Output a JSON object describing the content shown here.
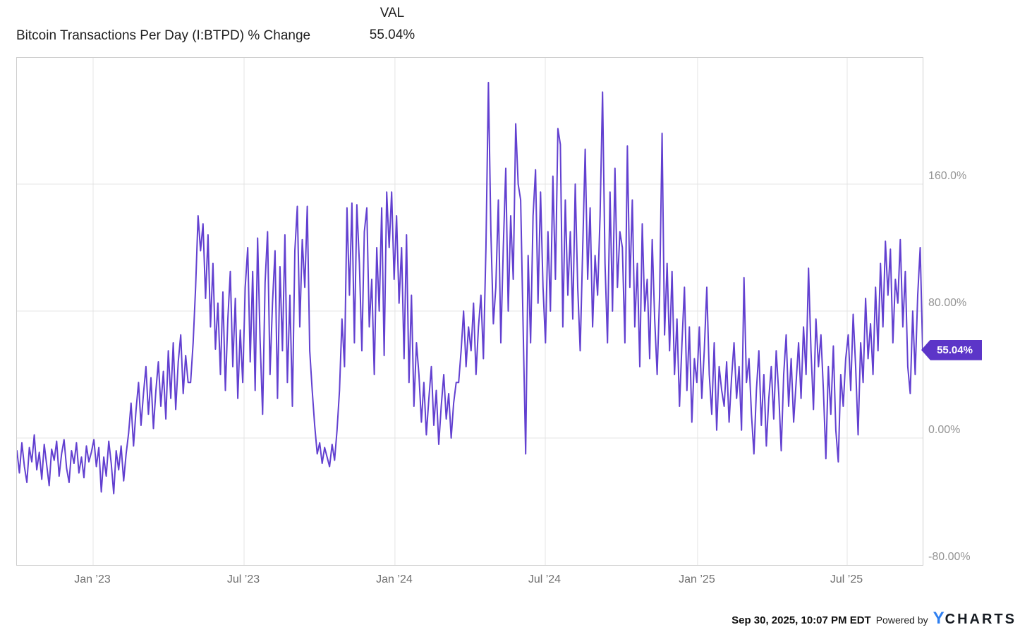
{
  "header": {
    "title": "Bitcoin Transactions Per Day (I:BTPD) % Change",
    "legend_label": "VAL",
    "legend_value": "55.04%"
  },
  "colors": {
    "line": "#6240d0",
    "badge": "#5c35c8",
    "logo_y_blue": "#2e7ff0",
    "grid": "#e4e4e4",
    "plot_border": "#cfcfcf"
  },
  "chart_data": {
    "type": "line",
    "title": "Bitcoin Transactions Per Day (I:BTPD) % Change",
    "legend": "VAL",
    "grid": true,
    "legend_position": "top",
    "y_axis_side": "right",
    "ylabel": "",
    "xlabel": "",
    "ylim": [
      -84,
      240
    ],
    "y_ticks": [
      {
        "value": 160,
        "label": "160.0%"
      },
      {
        "value": 80,
        "label": "80.00%"
      },
      {
        "value": 0,
        "label": "0.00%"
      },
      {
        "value": -80,
        "label": "-80.00%"
      }
    ],
    "x_ticks": [
      "Jan ’23",
      "Jul ’23",
      "Jan ’24",
      "Jul ’24",
      "Jan ’25",
      "Jul ’25"
    ],
    "x_tick_positions": [
      0.0841,
      0.2508,
      0.4174,
      0.5833,
      0.7515,
      0.9167
    ],
    "x_range": [
      "Oct 2022",
      "Sep 30, 2025"
    ],
    "last_value": 55.04,
    "last_value_label": "55.04%",
    "values": [
      -8,
      -22,
      -3,
      -18,
      -28,
      -6,
      -15,
      2,
      -20,
      -9,
      -26,
      -4,
      -17,
      -30,
      -7,
      -14,
      -2,
      -24,
      -10,
      -1,
      -19,
      -28,
      -8,
      -16,
      -3,
      -22,
      -12,
      -25,
      -5,
      -15,
      -9,
      -1,
      -18,
      -6,
      -34,
      -12,
      -24,
      -2,
      -16,
      -35,
      -8,
      -20,
      -5,
      -27,
      -10,
      3,
      22,
      -5,
      18,
      35,
      8,
      28,
      45,
      15,
      38,
      6,
      30,
      48,
      20,
      42,
      12,
      55,
      25,
      60,
      18,
      48,
      65,
      28,
      52,
      35,
      35,
      60,
      95,
      140,
      118,
      135,
      88,
      128,
      70,
      110,
      56,
      85,
      40,
      92,
      30,
      75,
      105,
      45,
      88,
      25,
      68,
      35,
      95,
      120,
      48,
      105,
      30,
      126,
      62,
      15,
      98,
      130,
      40,
      85,
      118,
      25,
      108,
      55,
      128,
      35,
      90,
      20,
      118,
      146,
      70,
      125,
      95,
      146,
      55,
      30,
      8,
      -10,
      -3,
      -16,
      -6,
      -12,
      -18,
      -4,
      -14,
      5,
      30,
      75,
      45,
      145,
      90,
      148,
      60,
      147,
      110,
      55,
      130,
      145,
      70,
      100,
      40,
      120,
      80,
      145,
      52,
      155,
      120,
      155,
      100,
      140,
      85,
      120,
      50,
      128,
      35,
      90,
      20,
      60,
      40,
      10,
      35,
      2,
      25,
      45,
      8,
      30,
      -4,
      20,
      40,
      12,
      28,
      0,
      22,
      35,
      35,
      55,
      80,
      45,
      70,
      55,
      85,
      40,
      70,
      90,
      50,
      120,
      224,
      130,
      72,
      95,
      150,
      60,
      120,
      170,
      80,
      140,
      100,
      198,
      160,
      150,
      70,
      -10,
      115,
      60,
      140,
      169,
      85,
      155,
      95,
      60,
      130,
      80,
      165,
      100,
      195,
      185,
      70,
      150,
      90,
      130,
      75,
      160,
      95,
      55,
      120,
      182,
      100,
      145,
      70,
      115,
      90,
      140,
      218,
      110,
      60,
      155,
      80,
      170,
      95,
      130,
      120,
      60,
      184,
      95,
      150,
      70,
      110,
      45,
      135,
      80,
      100,
      50,
      125,
      75,
      40,
      90,
      192,
      65,
      110,
      55,
      105,
      40,
      75,
      20,
      60,
      95,
      30,
      70,
      10,
      50,
      35,
      70,
      25,
      55,
      95,
      40,
      15,
      60,
      5,
      45,
      30,
      20,
      48,
      10,
      38,
      60,
      25,
      45,
      5,
      101,
      35,
      50,
      15,
      -10,
      30,
      55,
      8,
      40,
      -5,
      25,
      45,
      12,
      55,
      28,
      -8,
      40,
      65,
      20,
      50,
      10,
      35,
      60,
      25,
      70,
      40,
      107,
      55,
      18,
      75,
      45,
      65,
      30,
      -13,
      45,
      15,
      58,
      5,
      -15,
      40,
      20,
      50,
      65,
      30,
      78,
      45,
      2,
      60,
      35,
      88,
      50,
      72,
      40,
      95,
      55,
      110,
      70,
      124,
      90,
      119,
      60,
      100,
      85,
      125,
      70,
      105,
      45,
      28,
      80,
      40,
      90,
      120,
      55.04
    ]
  },
  "footer": {
    "timestamp": "Sep 30, 2025, 10:07 PM EDT",
    "powered_by": "Powered by",
    "logo_y": "Y",
    "logo_rest": "CHARTS"
  }
}
